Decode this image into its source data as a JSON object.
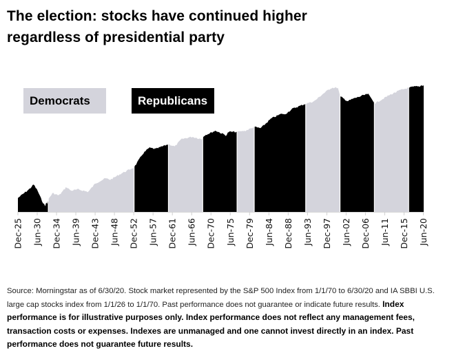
{
  "title_line1": "The election: stocks have continued higher",
  "title_line2": "regardless of presidential party",
  "legend": [
    {
      "label": "Democrats",
      "color": "#d4d4dc",
      "text_color": "#000000"
    },
    {
      "label": "Republicans",
      "color": "#000000",
      "text_color": "#ffffff"
    }
  ],
  "source": {
    "regular": "Source: Morningstar as of 6/30/20. Stock market represented by the S&P 500 Index from 1/1/70 to 6/30/20 and IA SBBI U.S. large cap stocks index from 1/1/26 to 1/1/70. Past performance does not guarantee or indicate future results. ",
    "bold": "Index performance is for illustrative purposes only. Index performance does not reflect any management fees, transaction costs or expenses. Indexes are unmanaged and one cannot invest directly in an index. Past performance does not guarantee future results."
  },
  "chart_data": {
    "type": "area",
    "title": "The election: stocks have continued higher regardless of presidential party",
    "xlabel": "",
    "ylabel": "",
    "y_scale": "log (relative, unlabeled)",
    "grid": false,
    "legend_position": "top-left",
    "x_range": [
      1925.92,
      2020.5
    ],
    "x_tick_labels": [
      "Dec-25",
      "Jun-30",
      "Dec-34",
      "Jun-39",
      "Dec-43",
      "Jun-48",
      "Dec-52",
      "Jun-57",
      "Dec-61",
      "Jun-66",
      "Dec-70",
      "Jun-75",
      "Dec-79",
      "Jun-84",
      "Dec-88",
      "Jun-93",
      "Dec-97",
      "Jun-02",
      "Dec-06",
      "Jun-11",
      "Dec-15",
      "Jun-20"
    ],
    "x_tick_values": [
      1925.92,
      1930.42,
      1934.92,
      1939.42,
      1943.92,
      1948.42,
      1952.92,
      1957.42,
      1961.92,
      1966.42,
      1970.92,
      1975.42,
      1979.92,
      1984.42,
      1988.92,
      1993.42,
      1997.92,
      2002.42,
      2006.92,
      2011.42,
      2015.92,
      2020.42
    ],
    "colors": {
      "Democrats": "#d4d4dc",
      "Republicans": "#000000"
    },
    "periods": [
      {
        "party": "Republicans",
        "start": 1925.92,
        "end": 1933.0
      },
      {
        "party": "Democrats",
        "start": 1933.0,
        "end": 1953.0
      },
      {
        "party": "Republicans",
        "start": 1953.0,
        "end": 1961.0
      },
      {
        "party": "Democrats",
        "start": 1961.0,
        "end": 1969.0
      },
      {
        "party": "Republicans",
        "start": 1969.0,
        "end": 1977.0
      },
      {
        "party": "Democrats",
        "start": 1977.0,
        "end": 1981.0
      },
      {
        "party": "Republicans",
        "start": 1981.0,
        "end": 1993.0
      },
      {
        "party": "Democrats",
        "start": 1993.0,
        "end": 2001.0
      },
      {
        "party": "Republicans",
        "start": 2001.0,
        "end": 2009.0
      },
      {
        "party": "Democrats",
        "start": 2009.0,
        "end": 2017.0
      },
      {
        "party": "Republicans",
        "start": 2017.0,
        "end": 2020.5
      }
    ],
    "series": [
      {
        "name": "Stock market (relative level, 0 = chart floor, 1 = chart top)",
        "x": [
          1925.92,
          1927.0,
          1928.5,
          1929.6,
          1930.5,
          1931.5,
          1932.3,
          1932.5,
          1932.7,
          1933.0,
          1934.0,
          1935.5,
          1937.2,
          1938.3,
          1940.0,
          1942.3,
          1944.0,
          1946.3,
          1947.5,
          1950.0,
          1953.0,
          1955.0,
          1956.5,
          1958.0,
          1961.0,
          1962.5,
          1964.0,
          1966.5,
          1968.8,
          1969.3,
          1972.0,
          1974.5,
          1975.0,
          1977.0,
          1979.0,
          1981.0,
          1982.5,
          1985.0,
          1987.5,
          1988.0,
          1990.0,
          1993.0,
          1995.0,
          1997.0,
          1999.0,
          2000.5,
          2001.0,
          2002.8,
          2004.0,
          2007.5,
          2008.8,
          2009.1,
          2010.0,
          2012.5,
          2015.0,
          2017.0,
          2018.5,
          2019.5,
          2020.0,
          2020.5
        ],
        "y": [
          0.08,
          0.11,
          0.15,
          0.19,
          0.14,
          0.06,
          0.01,
          0.05,
          0.02,
          0.07,
          0.12,
          0.1,
          0.17,
          0.14,
          0.15,
          0.13,
          0.2,
          0.24,
          0.23,
          0.28,
          0.33,
          0.44,
          0.49,
          0.48,
          0.52,
          0.5,
          0.56,
          0.58,
          0.56,
          0.59,
          0.63,
          0.59,
          0.62,
          0.62,
          0.63,
          0.66,
          0.65,
          0.73,
          0.77,
          0.76,
          0.81,
          0.85,
          0.87,
          0.93,
          0.98,
          0.98,
          0.91,
          0.87,
          0.89,
          0.93,
          0.87,
          0.85,
          0.87,
          0.92,
          0.96,
          0.98,
          0.99,
          0.99,
          1.0,
          1.0
        ]
      }
    ]
  }
}
